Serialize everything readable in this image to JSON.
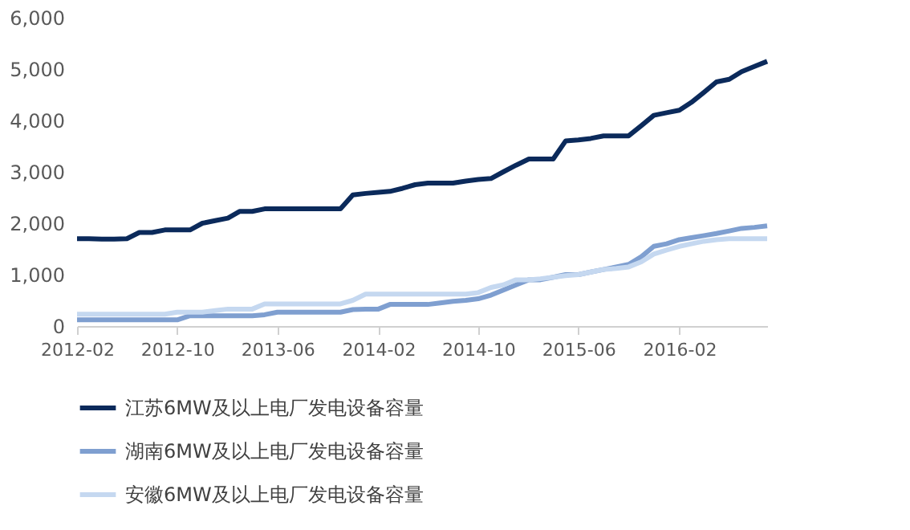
{
  "chart_data": {
    "type": "line",
    "x": [
      "2012-02",
      "2012-03",
      "2012-04",
      "2012-05",
      "2012-06",
      "2012-07",
      "2012-08",
      "2012-09",
      "2012-10",
      "2012-11",
      "2012-12",
      "2013-01",
      "2013-02",
      "2013-03",
      "2013-04",
      "2013-05",
      "2013-06",
      "2013-07",
      "2013-08",
      "2013-09",
      "2013-10",
      "2013-11",
      "2013-12",
      "2014-01",
      "2014-02",
      "2014-03",
      "2014-04",
      "2014-05",
      "2014-06",
      "2014-07",
      "2014-08",
      "2014-09",
      "2014-10",
      "2014-11",
      "2014-12",
      "2015-01",
      "2015-02",
      "2015-03",
      "2015-04",
      "2015-05",
      "2015-06",
      "2015-07",
      "2015-08",
      "2015-09",
      "2015-10",
      "2015-11",
      "2015-12",
      "2016-01",
      "2016-02",
      "2016-03",
      "2016-04",
      "2016-05",
      "2016-06",
      "2016-07",
      "2016-08",
      "2016-09"
    ],
    "series": [
      {
        "name": "江苏6MW及以上电厂发电设备容量",
        "color": "#0b2a5b",
        "values": [
          1700,
          1700,
          1690,
          1690,
          1700,
          1820,
          1820,
          1870,
          1870,
          1870,
          2000,
          2050,
          2100,
          2230,
          2230,
          2280,
          2280,
          2280,
          2280,
          2280,
          2280,
          2280,
          2550,
          2580,
          2600,
          2620,
          2680,
          2750,
          2780,
          2780,
          2780,
          2820,
          2850,
          2870,
          3000,
          3130,
          3250,
          3250,
          3250,
          3600,
          3620,
          3650,
          3700,
          3700,
          3700,
          3900,
          4100,
          4150,
          4200,
          4350,
          4550,
          4750,
          4800,
          4950,
          5050,
          5150
        ]
      },
      {
        "name": "湖南6MW及以上电厂发电设备容量",
        "color": "#7f9fd0",
        "values": [
          120,
          120,
          120,
          120,
          120,
          120,
          120,
          120,
          120,
          200,
          200,
          200,
          200,
          200,
          200,
          220,
          270,
          270,
          270,
          270,
          270,
          270,
          320,
          330,
          330,
          420,
          420,
          420,
          420,
          450,
          480,
          500,
          530,
          600,
          700,
          800,
          900,
          900,
          950,
          1000,
          1000,
          1050,
          1100,
          1150,
          1200,
          1350,
          1550,
          1600,
          1680,
          1720,
          1760,
          1800,
          1850,
          1900,
          1920,
          1950
        ]
      },
      {
        "name": "安徽6MW及以上电厂发电设备容量",
        "color": "#c5d8f0",
        "values": [
          230,
          230,
          230,
          230,
          230,
          230,
          230,
          230,
          270,
          270,
          270,
          300,
          330,
          330,
          330,
          430,
          430,
          430,
          430,
          430,
          430,
          430,
          500,
          620,
          620,
          620,
          620,
          620,
          620,
          620,
          620,
          620,
          650,
          750,
          800,
          900,
          900,
          920,
          950,
          980,
          1000,
          1050,
          1100,
          1120,
          1150,
          1250,
          1400,
          1480,
          1550,
          1600,
          1650,
          1680,
          1700,
          1700,
          1700,
          1700
        ]
      }
    ],
    "xlim": [
      "2012-02",
      "2016-09"
    ],
    "xticks": [
      {
        "value": "2012-02",
        "label": "2012-02"
      },
      {
        "value": "2012-10",
        "label": "2012-10"
      },
      {
        "value": "2013-06",
        "label": "2013-06"
      },
      {
        "value": "2014-02",
        "label": "2014-02"
      },
      {
        "value": "2014-10",
        "label": "2014-10"
      },
      {
        "value": "2015-06",
        "label": "2015-06"
      },
      {
        "value": "2016-02",
        "label": "2016-02"
      }
    ],
    "ylim": [
      0,
      6000
    ],
    "yticks": [
      {
        "value": 0,
        "label": "0"
      },
      {
        "value": 1000,
        "label": "1,000"
      },
      {
        "value": 2000,
        "label": "2,000"
      },
      {
        "value": 3000,
        "label": "3,000"
      },
      {
        "value": 4000,
        "label": "4,000"
      },
      {
        "value": 5000,
        "label": "5,000"
      },
      {
        "value": 6000,
        "label": "6,000"
      }
    ],
    "grid": false,
    "legend": "bottom",
    "marker": "none",
    "line_style": "solid"
  }
}
